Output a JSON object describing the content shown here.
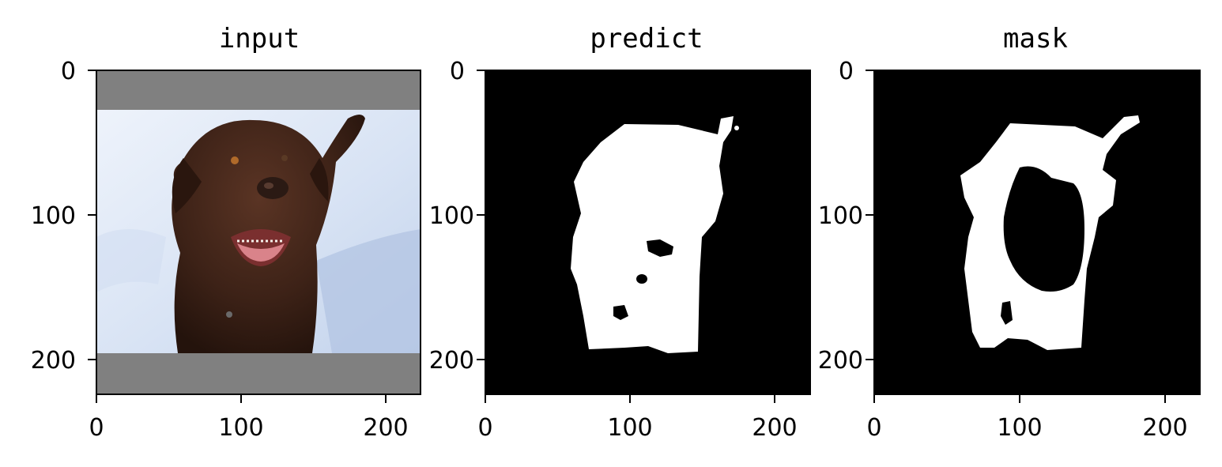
{
  "figure": {
    "colors": {
      "background": "#ffffff",
      "axes": "#000000",
      "padding_gray": "#808080",
      "snow": "#dfe8f5",
      "snow_shadow": "#b8c9e6",
      "dog_fur": "#3d2217",
      "dog_tongue": "#d9838a",
      "mask_foreground": "#ffffff",
      "mask_background": "#000000"
    },
    "panels": [
      {
        "title": "input",
        "content": "photo of a brown dog sitting in snow, letterboxed with gray bars",
        "xticks": [
          "0",
          "100",
          "200"
        ],
        "yticks": [
          "0",
          "100",
          "200"
        ]
      },
      {
        "title": "predict",
        "content": "binary segmentation prediction (white dog silhouette on black)",
        "xticks": [
          "0",
          "100",
          "200"
        ],
        "yticks": [
          "0",
          "100",
          "200"
        ]
      },
      {
        "title": "mask",
        "content": "ground-truth binary mask (white ring-shaped dog region on black)",
        "xticks": [
          "0",
          "100",
          "200"
        ],
        "yticks": [
          "0",
          "100",
          "200"
        ]
      }
    ]
  }
}
